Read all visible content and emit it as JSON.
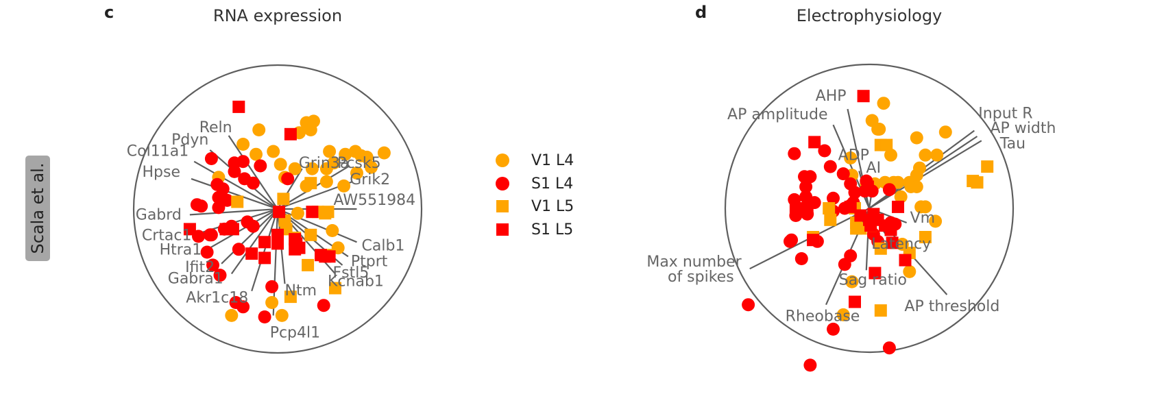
{
  "side_label": "Scala et al.",
  "legend": [
    {
      "label": "V1 L4",
      "color": "#FFA500",
      "marker": "circle"
    },
    {
      "label": "S1 L4",
      "color": "#FF0000",
      "marker": "circle"
    },
    {
      "label": "V1 L5",
      "color": "#FFA500",
      "marker": "square"
    },
    {
      "label": "S1 L5",
      "color": "#FF0000",
      "marker": "square"
    }
  ],
  "chart_data": [
    {
      "type": "scatter",
      "panel_letter": "c",
      "title": "RNA expression",
      "xlim": [
        -1,
        1
      ],
      "ylim": [
        -1,
        1
      ],
      "boundary": "unit circle",
      "loadings": [
        {
          "label": "Reln",
          "x": -0.34,
          "y": 0.51
        },
        {
          "label": "Pdyn",
          "x": -0.47,
          "y": 0.41
        },
        {
          "label": "Col11a1",
          "x": -0.58,
          "y": 0.33
        },
        {
          "label": "Hpse",
          "x": -0.6,
          "y": 0.21
        },
        {
          "label": "Gabrd",
          "x": -0.61,
          "y": -0.04
        },
        {
          "label": "Crtac1",
          "x": -0.55,
          "y": -0.17
        },
        {
          "label": "Htra1",
          "x": -0.47,
          "y": -0.27
        },
        {
          "label": "Ifit2",
          "x": -0.39,
          "y": -0.38
        },
        {
          "label": "Gabra1",
          "x": -0.32,
          "y": -0.45
        },
        {
          "label": "Akr1c18",
          "x": -0.18,
          "y": -0.57
        },
        {
          "label": "Pcp4l1",
          "x": -0.03,
          "y": -0.74
        },
        {
          "label": "Ntm",
          "x": 0.05,
          "y": -0.52
        },
        {
          "label": "Kcnab1",
          "x": 0.4,
          "y": -0.45
        },
        {
          "label": "Fstl5",
          "x": 0.45,
          "y": -0.39
        },
        {
          "label": "Ptprt",
          "x": 0.49,
          "y": -0.33
        },
        {
          "label": "Calb1",
          "x": 0.55,
          "y": -0.23
        },
        {
          "label": "AW551984",
          "x": 0.55,
          "y": 0.0
        },
        {
          "label": "Grik2",
          "x": 0.52,
          "y": 0.19
        },
        {
          "label": "Pcsk5",
          "x": 0.5,
          "y": 0.3
        },
        {
          "label": "Grin3a",
          "x": 0.17,
          "y": 0.28
        }
      ],
      "series": [
        {
          "name": "V1 L4",
          "points": [
            [
              -0.13,
              0.55
            ],
            [
              -0.24,
              0.45
            ],
            [
              -0.15,
              0.38
            ],
            [
              -0.03,
              0.4
            ],
            [
              0.15,
              0.53
            ],
            [
              0.2,
              0.6
            ],
            [
              0.23,
              0.55
            ],
            [
              0.25,
              0.61
            ],
            [
              0.36,
              0.4
            ],
            [
              0.47,
              0.38
            ],
            [
              0.54,
              0.4
            ],
            [
              0.58,
              0.37
            ],
            [
              0.62,
              0.36
            ],
            [
              0.65,
              0.29
            ],
            [
              0.74,
              0.39
            ],
            [
              0.39,
              0.32
            ],
            [
              0.34,
              0.28
            ],
            [
              0.24,
              0.28
            ],
            [
              0.12,
              0.28
            ],
            [
              0.02,
              0.31
            ],
            [
              0.05,
              0.22
            ],
            [
              0.2,
              0.16
            ],
            [
              0.34,
              0.19
            ],
            [
              0.46,
              0.16
            ],
            [
              0.55,
              0.25
            ],
            [
              -0.41,
              0.22
            ],
            [
              0.14,
              -0.03
            ],
            [
              0.38,
              -0.15
            ],
            [
              0.42,
              -0.27
            ],
            [
              -0.04,
              -0.65
            ],
            [
              0.03,
              -0.74
            ],
            [
              -0.32,
              -0.74
            ]
          ]
        },
        {
          "name": "S1 L4",
          "points": [
            [
              -0.46,
              0.35
            ],
            [
              -0.3,
              0.32
            ],
            [
              -0.24,
              0.33
            ],
            [
              -0.12,
              0.3
            ],
            [
              -0.3,
              0.26
            ],
            [
              -0.23,
              0.21
            ],
            [
              -0.17,
              0.18
            ],
            [
              -0.42,
              0.17
            ],
            [
              -0.38,
              0.14
            ],
            [
              -0.41,
              0.08
            ],
            [
              -0.35,
              0.06
            ],
            [
              -0.56,
              0.03
            ],
            [
              -0.53,
              0.02
            ],
            [
              -0.41,
              0.01
            ],
            [
              0.07,
              0.21
            ],
            [
              -0.37,
              -0.14
            ],
            [
              -0.32,
              -0.12
            ],
            [
              -0.21,
              -0.09
            ],
            [
              -0.17,
              -0.12
            ],
            [
              -0.46,
              -0.18
            ],
            [
              -0.47,
              -0.18
            ],
            [
              -0.55,
              -0.19
            ],
            [
              -0.49,
              -0.3
            ],
            [
              -0.45,
              -0.39
            ],
            [
              -0.27,
              -0.28
            ],
            [
              -0.4,
              -0.46
            ],
            [
              -0.04,
              -0.54
            ],
            [
              -0.29,
              -0.65
            ],
            [
              -0.24,
              -0.68
            ],
            [
              -0.09,
              -0.75
            ],
            [
              0.32,
              -0.67
            ]
          ]
        },
        {
          "name": "V1 L5",
          "points": [
            [
              0.23,
              0.18
            ],
            [
              -0.28,
              0.05
            ],
            [
              0.04,
              0.07
            ],
            [
              0.05,
              -0.08
            ],
            [
              0.28,
              -0.02
            ],
            [
              0.33,
              -0.03
            ],
            [
              0.35,
              -0.02
            ],
            [
              0.06,
              -0.14
            ],
            [
              0.12,
              -0.2
            ],
            [
              0.23,
              -0.18
            ],
            [
              0.35,
              -0.32
            ],
            [
              0.21,
              -0.39
            ],
            [
              0.4,
              -0.55
            ],
            [
              0.09,
              -0.61
            ]
          ]
        },
        {
          "name": "S1 L5",
          "points": [
            [
              -0.27,
              0.71
            ],
            [
              0.09,
              0.52
            ],
            [
              -0.61,
              -0.14
            ],
            [
              -0.31,
              -0.14
            ],
            [
              -0.36,
              -0.14
            ],
            [
              -0.09,
              -0.23
            ],
            [
              0.0,
              -0.18
            ],
            [
              0.0,
              -0.24
            ],
            [
              0.01,
              -0.02
            ],
            [
              0.24,
              -0.02
            ],
            [
              0.12,
              -0.21
            ],
            [
              0.13,
              -0.24
            ],
            [
              0.15,
              -0.27
            ],
            [
              0.12,
              -0.28
            ],
            [
              -0.18,
              -0.31
            ],
            [
              -0.09,
              -0.34
            ],
            [
              0.3,
              -0.32
            ],
            [
              0.33,
              -0.33
            ],
            [
              0.36,
              -0.33
            ]
          ]
        }
      ]
    },
    {
      "type": "scatter",
      "panel_letter": "d",
      "title": "Electrophysiology",
      "xlim": [
        -1,
        1
      ],
      "ylim": [
        -1,
        1
      ],
      "boundary": "unit circle",
      "loadings": [
        {
          "label": "AHP",
          "x": -0.15,
          "y": 0.69
        },
        {
          "label": "AP amplitude",
          "x": -0.25,
          "y": 0.58
        },
        {
          "label": "ADP",
          "x": -0.07,
          "y": 0.26
        },
        {
          "label": "AI",
          "x": 0.03,
          "y": 0.19
        },
        {
          "label": "Input R",
          "x": 0.73,
          "y": 0.54
        },
        {
          "label": "AP width",
          "x": 0.75,
          "y": 0.5
        },
        {
          "label": "Tau",
          "x": 0.78,
          "y": 0.47
        },
        {
          "label": "Vm",
          "x": 0.26,
          "y": -0.1
        },
        {
          "label": "Latency",
          "x": 0.12,
          "y": -0.19
        },
        {
          "label": "Max number of spikes",
          "x": -0.83,
          "y": -0.42
        },
        {
          "label": "Sag ratio",
          "x": -0.02,
          "y": -0.43
        },
        {
          "label": "Rheobase",
          "x": -0.3,
          "y": -0.67
        },
        {
          "label": "AP threshold",
          "x": 0.54,
          "y": -0.6
        }
      ],
      "series": [
        {
          "name": "V1 L4",
          "points": [
            [
              0.1,
              0.73
            ],
            [
              0.02,
              0.61
            ],
            [
              0.06,
              0.55
            ],
            [
              0.07,
              0.55
            ],
            [
              0.15,
              0.37
            ],
            [
              0.33,
              0.49
            ],
            [
              0.39,
              0.37
            ],
            [
              0.47,
              0.37
            ],
            [
              0.53,
              0.53
            ],
            [
              0.35,
              0.28
            ],
            [
              0.33,
              0.23
            ],
            [
              0.29,
              0.15
            ],
            [
              0.28,
              0.18
            ],
            [
              0.2,
              0.18
            ],
            [
              0.17,
              0.18
            ],
            [
              0.11,
              0.18
            ],
            [
              0.04,
              0.17
            ],
            [
              -0.02,
              0.17
            ],
            [
              -0.12,
              0.23
            ],
            [
              -0.13,
              0.35
            ],
            [
              0.22,
              0.08
            ],
            [
              0.33,
              0.15
            ],
            [
              0.36,
              0.01
            ],
            [
              0.39,
              0.01
            ],
            [
              0.46,
              -0.09
            ],
            [
              0.23,
              -0.25
            ],
            [
              -0.12,
              -0.51
            ],
            [
              -0.18,
              -0.74
            ],
            [
              0.28,
              -0.44
            ]
          ]
        },
        {
          "name": "S1 L4",
          "points": [
            [
              -0.52,
              0.38
            ],
            [
              -0.31,
              0.4
            ],
            [
              -0.27,
              0.29
            ],
            [
              -0.45,
              0.22
            ],
            [
              -0.41,
              0.22
            ],
            [
              -0.44,
              0.15
            ],
            [
              -0.44,
              0.08
            ],
            [
              -0.52,
              0.06
            ],
            [
              -0.38,
              0.04
            ],
            [
              -0.02,
              0.19
            ],
            [
              -0.18,
              0.24
            ],
            [
              -0.13,
              0.17
            ],
            [
              -0.25,
              0.07
            ],
            [
              -0.1,
              0.11
            ],
            [
              -0.11,
              0.04
            ],
            [
              -0.03,
              0.12
            ],
            [
              0.02,
              0.12
            ],
            [
              0.14,
              0.13
            ],
            [
              -0.13,
              0.02
            ],
            [
              -0.17,
              0.0
            ],
            [
              -0.25,
              -0.02
            ],
            [
              -0.43,
              -0.04
            ],
            [
              -0.51,
              -0.05
            ],
            [
              0.15,
              -0.1
            ],
            [
              0.18,
              -0.11
            ],
            [
              -0.54,
              -0.22
            ],
            [
              -0.55,
              -0.23
            ],
            [
              -0.36,
              -0.23
            ],
            [
              -0.47,
              -0.35
            ],
            [
              -0.13,
              -0.33
            ],
            [
              -0.17,
              -0.39
            ],
            [
              -0.84,
              -0.67
            ],
            [
              -0.25,
              -0.84
            ],
            [
              0.14,
              -0.97
            ],
            [
              -0.41,
              -1.09
            ],
            [
              0.06,
              -0.23
            ],
            [
              0.03,
              -0.18
            ]
          ]
        },
        {
          "name": "V1 L5",
          "points": [
            [
              0.08,
              0.44
            ],
            [
              0.12,
              0.44
            ],
            [
              0.82,
              0.29
            ],
            [
              0.72,
              0.19
            ],
            [
              0.75,
              0.18
            ],
            [
              -0.28,
              0.0
            ],
            [
              -0.27,
              -0.08
            ],
            [
              -0.1,
              0.0
            ],
            [
              -0.09,
              -0.1
            ],
            [
              -0.09,
              -0.14
            ],
            [
              -0.06,
              -0.14
            ],
            [
              0.01,
              -0.12
            ],
            [
              -0.39,
              -0.2
            ],
            [
              0.08,
              -0.28
            ],
            [
              0.28,
              -0.31
            ],
            [
              0.39,
              -0.2
            ],
            [
              0.08,
              -0.71
            ]
          ]
        },
        {
          "name": "S1 L5",
          "points": [
            [
              -0.04,
              0.78
            ],
            [
              -0.38,
              0.46
            ],
            [
              -0.01,
              0.15
            ],
            [
              -0.51,
              0.0
            ],
            [
              -0.43,
              0.0
            ],
            [
              -0.41,
              0.04
            ],
            [
              -0.13,
              0.01
            ],
            [
              -0.06,
              -0.05
            ],
            [
              0.03,
              -0.04
            ],
            [
              0.2,
              0.01
            ],
            [
              0.0,
              -0.08
            ],
            [
              0.01,
              -0.12
            ],
            [
              0.06,
              -0.08
            ],
            [
              0.11,
              -0.12
            ],
            [
              0.15,
              -0.15
            ],
            [
              0.16,
              -0.24
            ],
            [
              0.25,
              -0.36
            ],
            [
              0.04,
              -0.45
            ],
            [
              -0.39,
              -0.22
            ],
            [
              -0.1,
              -0.65
            ]
          ]
        }
      ]
    }
  ]
}
